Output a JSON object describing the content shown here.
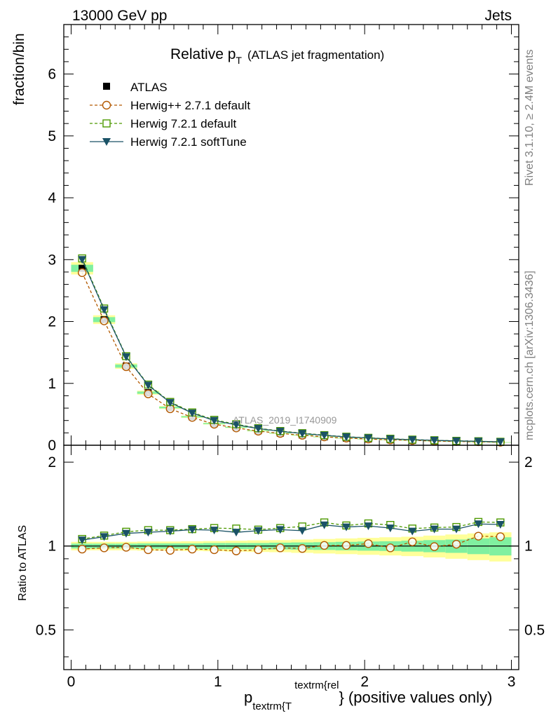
{
  "header": {
    "left": "13000 GeV pp",
    "right": "Jets"
  },
  "side_labels": {
    "rivet": "Rivet 3.1.10, ≥ 2.4M events",
    "mcplots": "mcplots.cern.ch [arXiv:1306.3436]"
  },
  "colors": {
    "atlas": "#000000",
    "herwigpp": "#b35900",
    "herwig721": "#4d9900",
    "softtune": "#1a5266",
    "band_green": "#80f0a0",
    "band_yellow": "#ffff99"
  },
  "chart_data": [
    {
      "type": "scatter",
      "panel": "main",
      "title_main": "Relative p",
      "title_sub": "T",
      "title_rest": "(ATLAS jet fragmentation)",
      "ylabel": "fraction/bin",
      "watermark": "ATLAS_2019_I1740909",
      "xlim": [
        -0.05,
        3.05
      ],
      "ylim": [
        0,
        6.8
      ],
      "yticks": [
        0,
        1,
        2,
        3,
        4,
        5,
        6
      ],
      "ytick_labels": [
        "0",
        "1",
        "2",
        "3",
        "4",
        "5",
        "6"
      ],
      "x": [
        0.075,
        0.225,
        0.375,
        0.525,
        0.675,
        0.825,
        0.975,
        1.125,
        1.275,
        1.425,
        1.575,
        1.725,
        1.875,
        2.025,
        2.175,
        2.325,
        2.475,
        2.625,
        2.775,
        2.925
      ],
      "series": [
        {
          "name": "ATLAS",
          "marker": "square-filled",
          "values": [
            2.86,
            2.03,
            1.28,
            0.85,
            0.61,
            0.46,
            0.35,
            0.29,
            0.235,
            0.195,
            0.165,
            0.135,
            0.115,
            0.1,
            0.088,
            0.078,
            0.068,
            0.06,
            0.052,
            0.045
          ]
        },
        {
          "name": "Herwig++ 2.7.1 default",
          "marker": "circle-open",
          "values": [
            2.79,
            2.01,
            1.27,
            0.83,
            0.59,
            0.45,
            0.34,
            0.28,
            0.228,
            0.192,
            0.162,
            0.136,
            0.116,
            0.101,
            0.087,
            0.08,
            0.068,
            0.061,
            0.057,
            0.049
          ]
        },
        {
          "name": "Herwig 7.2.1 default",
          "marker": "square-open",
          "values": [
            3.02,
            2.21,
            1.44,
            0.98,
            0.7,
            0.53,
            0.41,
            0.34,
            0.275,
            0.23,
            0.195,
            0.163,
            0.138,
            0.12,
            0.105,
            0.091,
            0.081,
            0.071,
            0.065,
            0.056
          ]
        },
        {
          "name": "Herwig 7.2.1 softTune",
          "marker": "triangle-down-filled",
          "values": [
            3.0,
            2.19,
            1.43,
            0.97,
            0.69,
            0.52,
            0.4,
            0.33,
            0.27,
            0.225,
            0.19,
            0.16,
            0.135,
            0.118,
            0.102,
            0.089,
            0.079,
            0.07,
            0.064,
            0.055
          ]
        }
      ]
    },
    {
      "type": "scatter",
      "panel": "ratio",
      "ylabel": "Ratio to ATLAS",
      "xlabel_main": "p",
      "xlabel_sub": "textrm{T",
      "xlabel_sup": "textrm{rel",
      "xlabel_rest": "} (positive values only)",
      "xlim": [
        -0.05,
        3.05
      ],
      "ylim": [
        0.36,
        2.3
      ],
      "yticks": [
        0.5,
        1,
        2
      ],
      "ytick_labels": [
        "0.5",
        "1",
        "2"
      ],
      "xticks": [
        0,
        1,
        2,
        3
      ],
      "xtick_labels": [
        "0",
        "1",
        "2",
        "3"
      ],
      "x": [
        0.075,
        0.225,
        0.375,
        0.525,
        0.675,
        0.825,
        0.975,
        1.125,
        1.275,
        1.425,
        1.575,
        1.725,
        1.875,
        2.025,
        2.175,
        2.325,
        2.475,
        2.625,
        2.775,
        2.925
      ],
      "band_inner": [
        0.02,
        0.02,
        0.02,
        0.022,
        0.022,
        0.022,
        0.025,
        0.025,
        0.025,
        0.028,
        0.03,
        0.032,
        0.035,
        0.038,
        0.04,
        0.045,
        0.05,
        0.055,
        0.065,
        0.075
      ],
      "band_outer": [
        0.035,
        0.035,
        0.035,
        0.038,
        0.038,
        0.04,
        0.042,
        0.045,
        0.048,
        0.05,
        0.055,
        0.06,
        0.065,
        0.07,
        0.075,
        0.08,
        0.09,
        0.1,
        0.11,
        0.12
      ],
      "series": [
        {
          "name": "Herwig++ 2.7.1 default",
          "marker": "circle-open",
          "values": [
            0.975,
            0.985,
            0.99,
            0.97,
            0.965,
            0.975,
            0.97,
            0.96,
            0.97,
            0.985,
            0.98,
            1.005,
            1.005,
            1.02,
            0.985,
            1.035,
            0.995,
            1.015,
            1.085,
            1.08
          ]
        },
        {
          "name": "Herwig 7.2.1 default",
          "marker": "square-open",
          "values": [
            1.06,
            1.09,
            1.125,
            1.14,
            1.14,
            1.15,
            1.16,
            1.155,
            1.145,
            1.16,
            1.175,
            1.215,
            1.185,
            1.205,
            1.19,
            1.155,
            1.165,
            1.17,
            1.22,
            1.215
          ]
        },
        {
          "name": "Herwig 7.2.1 softTune",
          "marker": "triangle-down-filled",
          "values": [
            1.05,
            1.08,
            1.11,
            1.12,
            1.13,
            1.145,
            1.14,
            1.12,
            1.135,
            1.145,
            1.135,
            1.19,
            1.17,
            1.18,
            1.16,
            1.13,
            1.15,
            1.15,
            1.2,
            1.195
          ]
        }
      ]
    }
  ]
}
